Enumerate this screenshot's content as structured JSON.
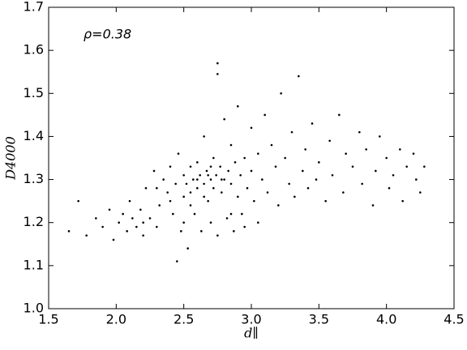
{
  "chart_data": {
    "type": "scatter",
    "xlabel": "d∥",
    "ylabel": "D4000",
    "annotations": [
      "ρ=0.38"
    ],
    "color": "#000000",
    "xlim": [
      1.5,
      4.5
    ],
    "xticks": [
      1.5,
      {
        "value": 2,
        "label": "2.0"
      },
      2.5,
      {
        "value": 3,
        "label": "3.0"
      },
      3.5,
      {
        "value": 4,
        "label": "4.0"
      },
      4.5
    ],
    "ylim": [
      1.0,
      1.7
    ],
    "yticks": [
      {
        "value": 1,
        "label": "1.0"
      },
      1.1,
      1.2,
      1.3,
      1.4,
      1.5,
      1.6,
      1.7
    ],
    "x": [
      1.65,
      1.72,
      1.78,
      1.85,
      1.9,
      1.95,
      1.98,
      2.02,
      2.05,
      2.08,
      2.1,
      2.12,
      2.15,
      2.18,
      2.2,
      2.22,
      2.25,
      2.28,
      2.3,
      2.32,
      2.35,
      2.38,
      2.4,
      2.42,
      2.44,
      2.45,
      2.46,
      2.48,
      2.5,
      2.5,
      2.52,
      2.53,
      2.55,
      2.55,
      2.57,
      2.58,
      2.6,
      2.6,
      2.62,
      2.63,
      2.65,
      2.65,
      2.67,
      2.68,
      2.7,
      2.7,
      2.72,
      2.72,
      2.74,
      2.75,
      2.75,
      2.75,
      2.77,
      2.78,
      2.8,
      2.8,
      2.82,
      2.83,
      2.85,
      2.85,
      2.87,
      2.88,
      2.9,
      2.9,
      2.92,
      2.93,
      2.95,
      2.97,
      3.0,
      3.0,
      3.02,
      3.05,
      3.05,
      3.08,
      3.1,
      3.12,
      3.15,
      3.18,
      3.2,
      3.22,
      3.25,
      3.28,
      3.3,
      3.32,
      3.35,
      3.38,
      3.4,
      3.42,
      3.45,
      3.48,
      3.5,
      3.55,
      3.58,
      3.6,
      3.65,
      3.68,
      3.7,
      3.75,
      3.8,
      3.82,
      3.85,
      3.9,
      3.92,
      3.95,
      4.0,
      4.02,
      4.05,
      4.1,
      4.12,
      4.15,
      4.2,
      4.22,
      4.25,
      4.28,
      2.6,
      2.65,
      2.55,
      2.7,
      2.5,
      2.4,
      2.3,
      2.2,
      2.85,
      2.95,
      2.78,
      2.68
    ],
    "y": [
      1.18,
      1.25,
      1.17,
      1.21,
      1.19,
      1.23,
      1.16,
      1.2,
      1.22,
      1.18,
      1.25,
      1.21,
      1.19,
      1.23,
      1.17,
      1.28,
      1.21,
      1.32,
      1.19,
      1.24,
      1.3,
      1.27,
      1.33,
      1.22,
      1.29,
      1.11,
      1.36,
      1.18,
      1.31,
      1.26,
      1.29,
      1.14,
      1.33,
      1.27,
      1.3,
      1.22,
      1.28,
      1.34,
      1.31,
      1.18,
      1.29,
      1.4,
      1.32,
      1.25,
      1.3,
      1.2,
      1.35,
      1.28,
      1.31,
      1.57,
      1.545,
      1.17,
      1.33,
      1.27,
      1.3,
      1.44,
      1.21,
      1.32,
      1.29,
      1.38,
      1.18,
      1.34,
      1.26,
      1.47,
      1.31,
      1.22,
      1.35,
      1.28,
      1.32,
      1.42,
      1.25,
      1.36,
      1.2,
      1.3,
      1.45,
      1.27,
      1.38,
      1.33,
      1.24,
      1.5,
      1.35,
      1.29,
      1.41,
      1.26,
      1.54,
      1.32,
      1.37,
      1.28,
      1.43,
      1.3,
      1.34,
      1.25,
      1.39,
      1.31,
      1.45,
      1.27,
      1.36,
      1.33,
      1.41,
      1.29,
      1.37,
      1.24,
      1.32,
      1.4,
      1.35,
      1.28,
      1.31,
      1.37,
      1.25,
      1.33,
      1.36,
      1.3,
      1.27,
      1.33,
      1.3,
      1.26,
      1.24,
      1.33,
      1.2,
      1.25,
      1.28,
      1.2,
      1.22,
      1.19,
      1.3,
      1.31
    ]
  }
}
